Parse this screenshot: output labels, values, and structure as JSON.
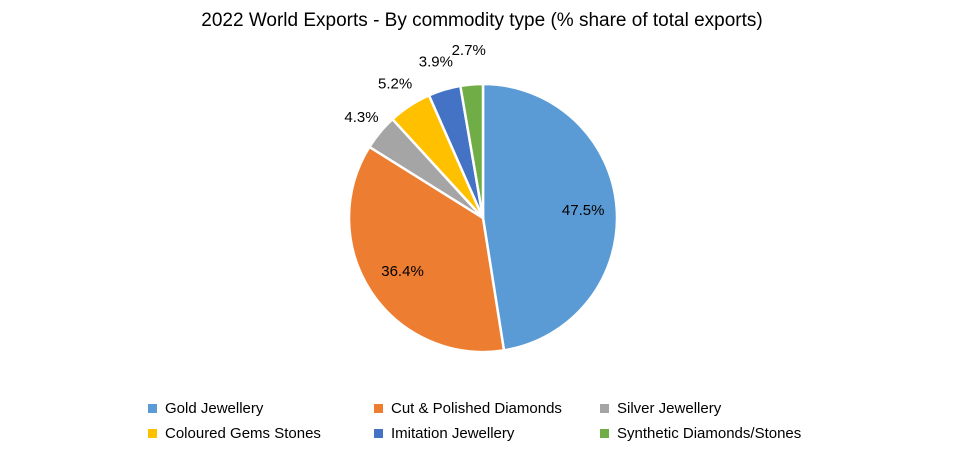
{
  "chart_data": {
    "type": "pie",
    "title": "2022 World Exports - By commodity type (% share of total exports)",
    "legend_position": "bottom",
    "slices": [
      {
        "label": "Gold Jewellery",
        "value": 47.5,
        "value_label": "47.5%",
        "color": "#5B9BD5"
      },
      {
        "label": "Cut & Polished Diamonds",
        "value": 36.4,
        "value_label": "36.4%",
        "color": "#ED7D31"
      },
      {
        "label": "Silver Jewellery",
        "value": 4.3,
        "value_label": "4.3%",
        "color": "#A5A5A5"
      },
      {
        "label": "Coloured Gems Stones",
        "value": 5.2,
        "value_label": "5.2%",
        "color": "#FFC000"
      },
      {
        "label": "Imitation Jewellery",
        "value": 3.9,
        "value_label": "3.9%",
        "color": "#4472C4"
      },
      {
        "label": "Synthetic Diamonds/Stones",
        "value": 2.7,
        "value_label": "2.7%",
        "color": "#70AD47"
      }
    ]
  }
}
